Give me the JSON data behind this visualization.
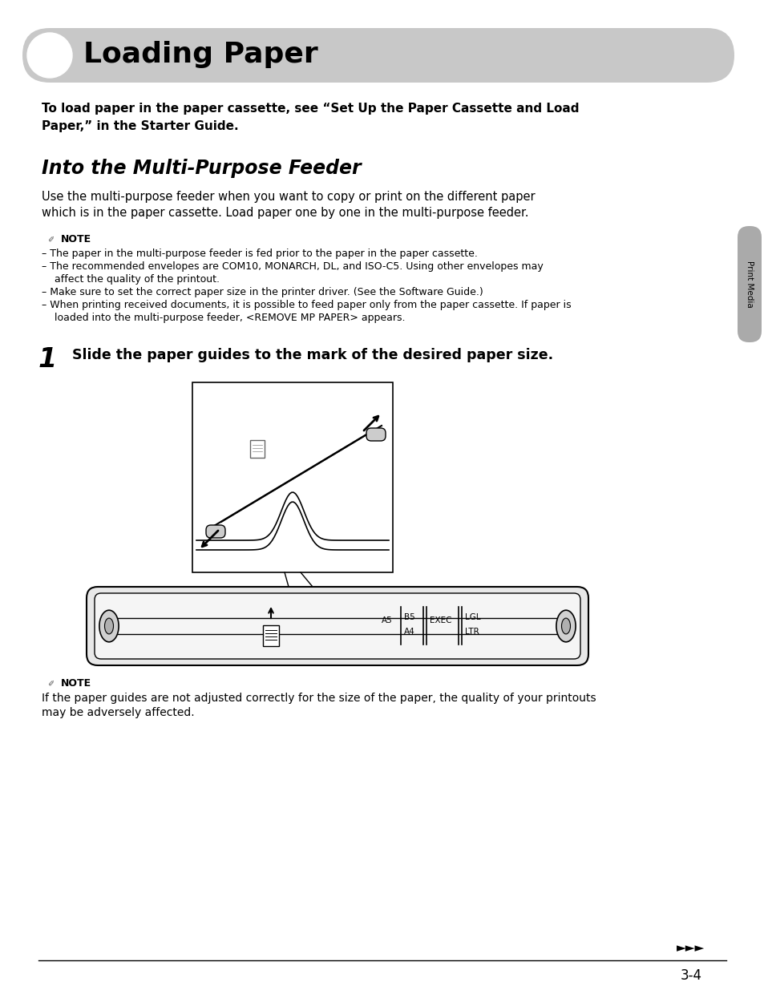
{
  "title": "Loading Paper",
  "header_bg": "#c8c8c8",
  "bg_color": "#ffffff",
  "intro_line1": "To load paper in the paper cassette, see “Set Up the Paper Cassette and Load",
  "intro_line2": "Paper,” in the Starter Guide.",
  "section_title": "Into the Multi-Purpose Feeder",
  "body_line1": "Use the multi-purpose feeder when you want to copy or print on the different paper",
  "body_line2": "which is in the paper cassette. Load paper one by one in the multi-purpose feeder.",
  "note_label": "NOTE",
  "note_lines": [
    "– The paper in the multi-purpose feeder is fed prior to the paper in the paper cassette.",
    "– The recommended envelopes are COM10, MONARCH, DL, and ISO-C5. Using other envelopes may",
    "    affect the quality of the printout.",
    "– Make sure to set the correct paper size in the printer driver. (See the Software Guide.)",
    "– When printing received documents, it is possible to feed paper only from the paper cassette. If paper is",
    "    loaded into the multi-purpose feeder, <REMOVE MP PAPER> appears."
  ],
  "step1_num": "1",
  "step1_text": "Slide the paper guides to the mark of the desired paper size.",
  "note2_label": "NOTE",
  "note2_line1": "If the paper guides are not adjusted correctly for the size of the paper, the quality of your printouts",
  "note2_line2": "may be adversely affected.",
  "sidebar_text": "Print Media",
  "page_num": "3-4",
  "arrow_symbol": "►►►",
  "sidebar_color": "#aaaaaa",
  "tray_fill": "#e8e8e8",
  "tray_inner_fill": "#f5f5f5"
}
